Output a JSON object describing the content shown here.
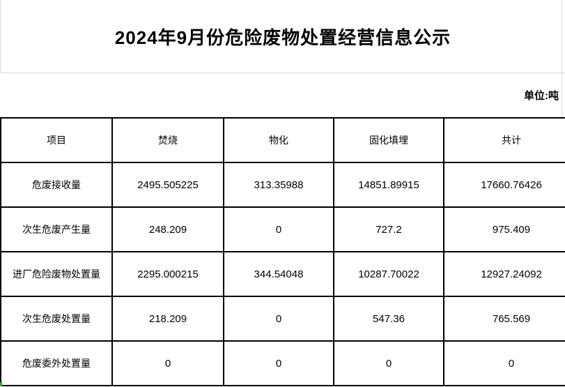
{
  "page": {
    "title": "2024年9月份危险废物处置经营信息公示",
    "unit_label": "单位:吨"
  },
  "colors": {
    "table_border": "#000000",
    "gridline": "#d9d9d9",
    "selection_green": "#3aa02f",
    "text": "#000000",
    "background": "#ffffff"
  },
  "table": {
    "headers": [
      "项目",
      "焚烧",
      "物化",
      "固化填埋",
      "共计"
    ],
    "rows": [
      {
        "label": "危废接收量",
        "values": [
          "2495.505225",
          "313.35988",
          "14851.89915",
          "17660.76426"
        ]
      },
      {
        "label": "次生危废产生量",
        "values": [
          "248.209",
          "0",
          "727.2",
          "975.409"
        ]
      },
      {
        "label": "进厂危险废物处置量",
        "values": [
          "2295.000215",
          "344.54048",
          "10287.70022",
          "12927.24092"
        ]
      },
      {
        "label": "次生危废处置量",
        "values": [
          "218.209",
          "0",
          "547.36",
          "765.569"
        ]
      },
      {
        "label": "危废委外处置量",
        "values": [
          "0",
          "0",
          "0",
          "0"
        ]
      }
    ]
  }
}
